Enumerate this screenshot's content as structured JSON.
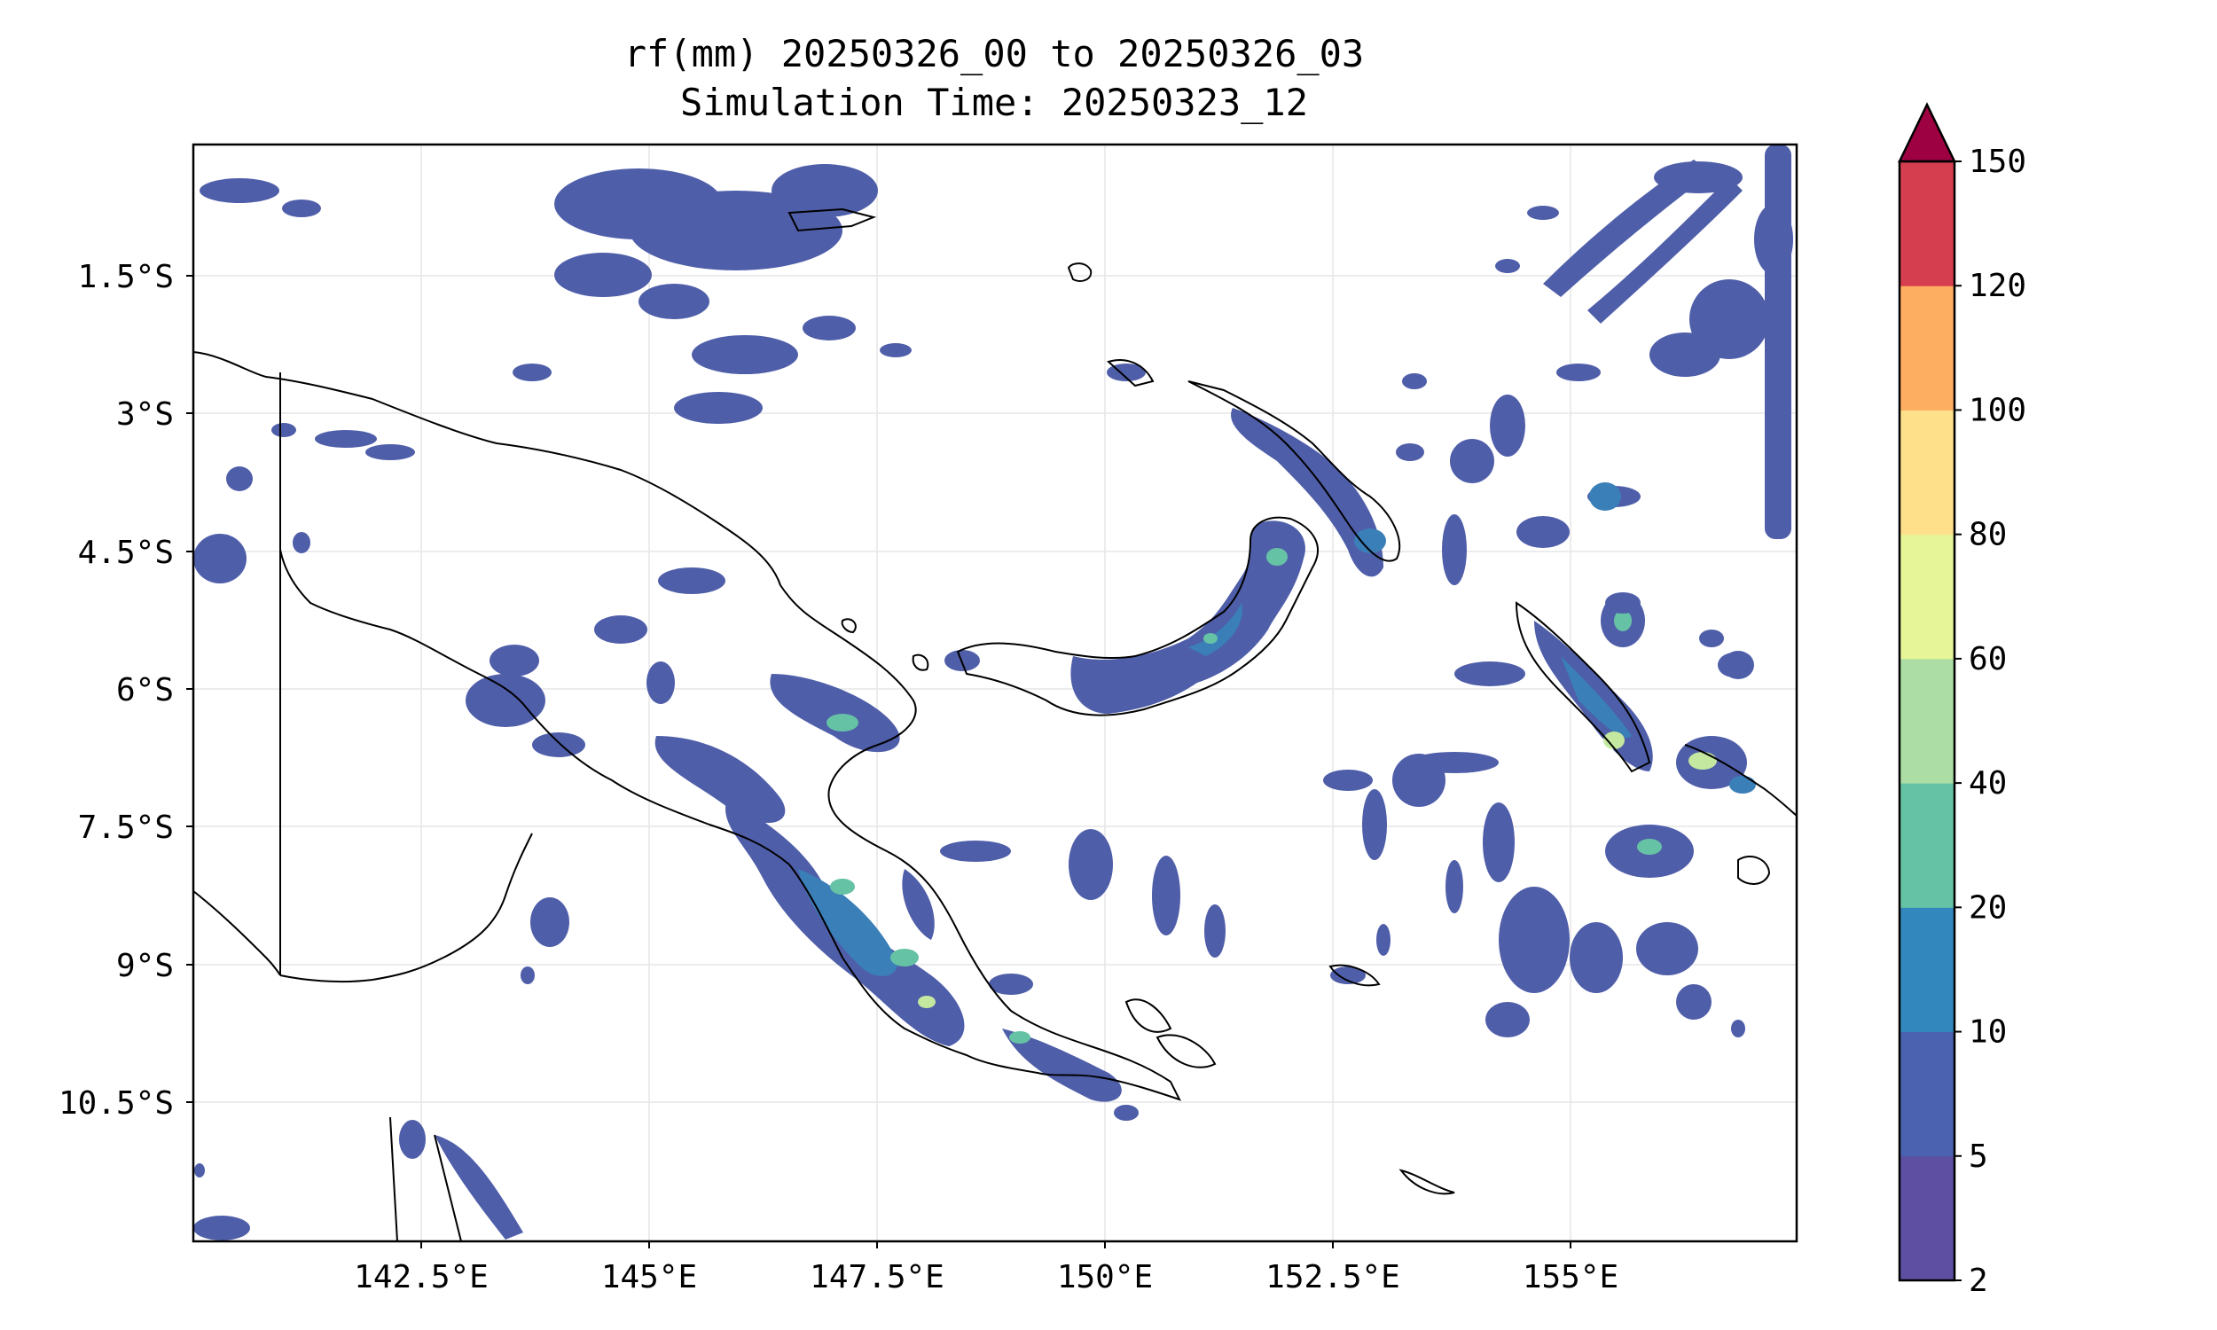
{
  "title": {
    "line1": "rf(mm) 20250326_00 to 20250326_03",
    "line2": "Simulation Time: 20250323_12"
  },
  "map": {
    "lat_ticks": [
      "1.5°S",
      "3°S",
      "4.5°S",
      "6°S",
      "7.5°S",
      "9°S",
      "10.5°S"
    ],
    "lon_ticks": [
      "142.5°E",
      "145°E",
      "147.5°E",
      "150°E",
      "152.5°E",
      "155°E"
    ],
    "lon_range": [
      140.0,
      157.6
    ],
    "lat_range": [
      -12.0,
      0.0
    ],
    "grid": true
  },
  "colorbar": {
    "labels": [
      "2",
      "5",
      "10",
      "20",
      "40",
      "60",
      "80",
      "100",
      "120",
      "150"
    ],
    "colors": [
      "#5e4fa2",
      "#4a62b0",
      "#3288bd",
      "#66c2a5",
      "#abdda4",
      "#e6f598",
      "#fee08b",
      "#fdae61",
      "#d53e4f"
    ],
    "extend_color": "#9e0142",
    "extend": "max"
  },
  "rain_colors": {
    "light": "#4f5ea9",
    "moderate": "#3a7fb8",
    "heavy": "#66c2a5",
    "very_heavy": "#c5e8a0"
  }
}
